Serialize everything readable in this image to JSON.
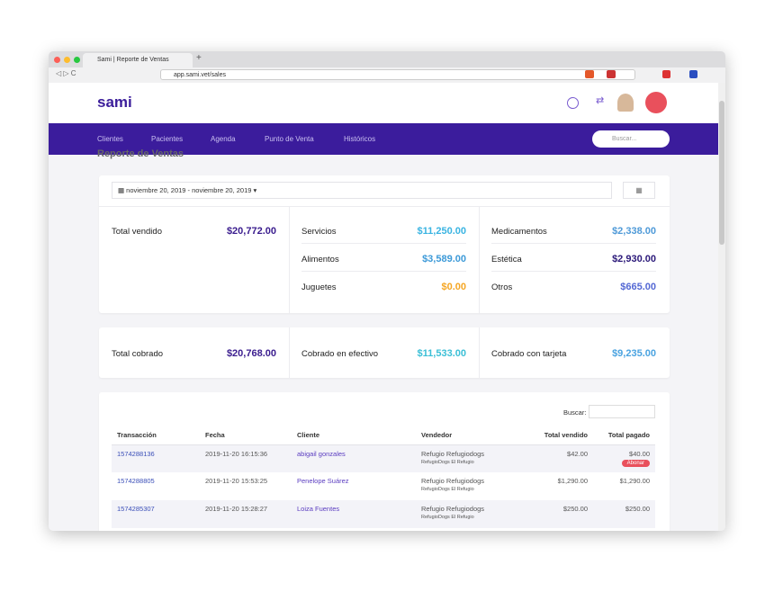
{
  "browser": {
    "tab_title": "Sami | Reporte de Ventas",
    "url": "app.sami.vet/sales"
  },
  "app": {
    "logo": "sami"
  },
  "nav": {
    "items": [
      "Clientes",
      "Pacientes",
      "Agenda",
      "Punto de Venta",
      "Históricos"
    ],
    "search_placeholder": "Buscar..."
  },
  "page": {
    "title": "Reporte de Ventas"
  },
  "filters": {
    "date_range": "noviembre 20, 2019 - noviembre 20, 2019"
  },
  "sales": {
    "total": {
      "label": "Total vendido",
      "value": "$20,772.00"
    },
    "categories": [
      {
        "label": "Servicios",
        "value": "$11,250.00"
      },
      {
        "label": "Alimentos",
        "value": "$3,589.00"
      },
      {
        "label": "Juguetes",
        "value": "$0.00"
      },
      {
        "label": "Medicamentos",
        "value": "$2,338.00"
      },
      {
        "label": "Estética",
        "value": "$2,930.00"
      },
      {
        "label": "Otros",
        "value": "$665.00"
      }
    ]
  },
  "collected": [
    {
      "label": "Total cobrado",
      "value": "$20,768.00"
    },
    {
      "label": "Cobrado en efectivo",
      "value": "$11,533.00"
    },
    {
      "label": "Cobrado con tarjeta",
      "value": "$9,235.00"
    }
  ],
  "table": {
    "search_label": "Buscar:",
    "headers": [
      "Transacción",
      "Fecha",
      "Cliente",
      "Vendedor",
      "Total vendido",
      "Total pagado"
    ],
    "rows": [
      {
        "transaction": "1574288136",
        "date": "2019-11-20 16:15:36",
        "client": "abigail gonzales",
        "seller": "Refugio Refugiodogs",
        "seller_sub": "RefugioDogs El Refugio",
        "total_sold": "$42.00",
        "total_paid": "$40.00",
        "badge": "Abonar"
      },
      {
        "transaction": "1574288805",
        "date": "2019-11-20 15:53:25",
        "client": "Penelope Suárez",
        "seller": "Refugio Refugiodogs",
        "seller_sub": "RefugioDogs El Refugio",
        "total_sold": "$1,290.00",
        "total_paid": "$1,290.00"
      },
      {
        "transaction": "1574285307",
        "date": "2019-11-20 15:28:27",
        "client": "Loiza Fuentes",
        "seller": "Refugio Refugiodogs",
        "seller_sub": "RefugioDogs El Refugio",
        "total_sold": "$250.00",
        "total_paid": "$250.00"
      }
    ]
  }
}
